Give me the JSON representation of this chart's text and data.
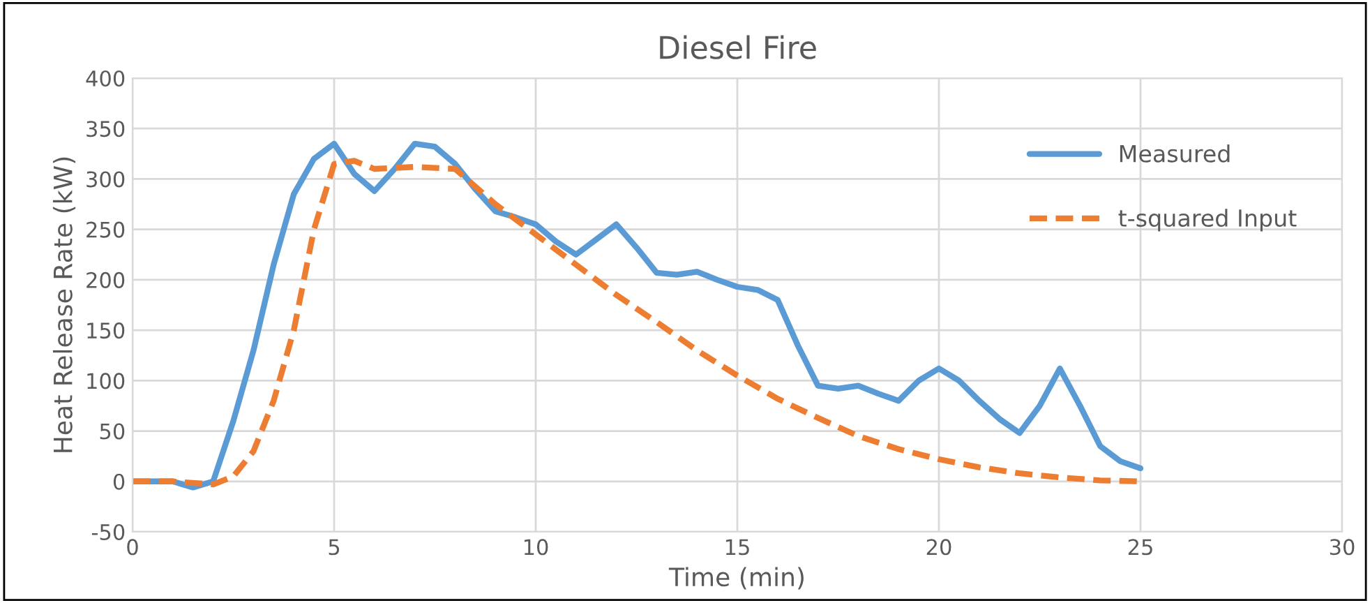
{
  "chart_data": {
    "type": "line",
    "title": "Diesel Fire",
    "xlabel": "Time (min)",
    "ylabel": "Heat Release Rate (kW)",
    "xlim": [
      0,
      30
    ],
    "xticks": [
      0,
      5,
      10,
      15,
      20,
      25,
      30
    ],
    "ylim": [
      -50,
      400
    ],
    "yticks": [
      -50,
      0,
      50,
      100,
      150,
      200,
      250,
      300,
      350,
      400
    ],
    "grid": true,
    "legend": "top right",
    "marker": "none",
    "series": [
      {
        "name": "Measured",
        "color": "#5b9bd5",
        "line_style": "solid",
        "x": [
          0,
          1,
          1.5,
          2,
          2.5,
          3,
          3.5,
          4,
          4.5,
          5,
          5.5,
          6,
          6.5,
          7,
          7.5,
          8,
          8.5,
          9,
          9.5,
          10,
          10.5,
          11,
          11.5,
          12,
          12.5,
          13,
          13.5,
          14,
          14.5,
          15,
          15.5,
          16,
          16.5,
          17,
          17.5,
          18,
          18.5,
          19,
          19.5,
          20,
          20.5,
          21,
          21.5,
          22,
          22.5,
          23,
          23.5,
          24,
          24.5,
          25
        ],
        "values": [
          0,
          0,
          -6,
          0,
          60,
          130,
          215,
          285,
          320,
          335,
          305,
          288,
          310,
          335,
          332,
          315,
          290,
          268,
          262,
          255,
          238,
          225,
          240,
          255,
          232,
          207,
          205,
          208,
          200,
          193,
          190,
          180,
          135,
          95,
          92,
          95,
          87,
          80,
          100,
          112,
          100,
          80,
          62,
          48,
          75,
          112,
          75,
          35,
          20,
          13
        ]
      },
      {
        "name": "t-squared Input",
        "color": "#ed7d31",
        "line_style": "dashed",
        "x": [
          0,
          1,
          2,
          2.5,
          3,
          3.5,
          4,
          4.5,
          5,
          5.5,
          6,
          7,
          8,
          9,
          10,
          11,
          12,
          13,
          14,
          15,
          16,
          17,
          18,
          19,
          20,
          21,
          22,
          23,
          24,
          25
        ],
        "values": [
          0,
          0,
          -3,
          5,
          30,
          80,
          150,
          250,
          315,
          318,
          310,
          312,
          310,
          275,
          245,
          215,
          185,
          158,
          130,
          105,
          82,
          63,
          45,
          32,
          22,
          14,
          8,
          4,
          1,
          0
        ]
      }
    ]
  }
}
